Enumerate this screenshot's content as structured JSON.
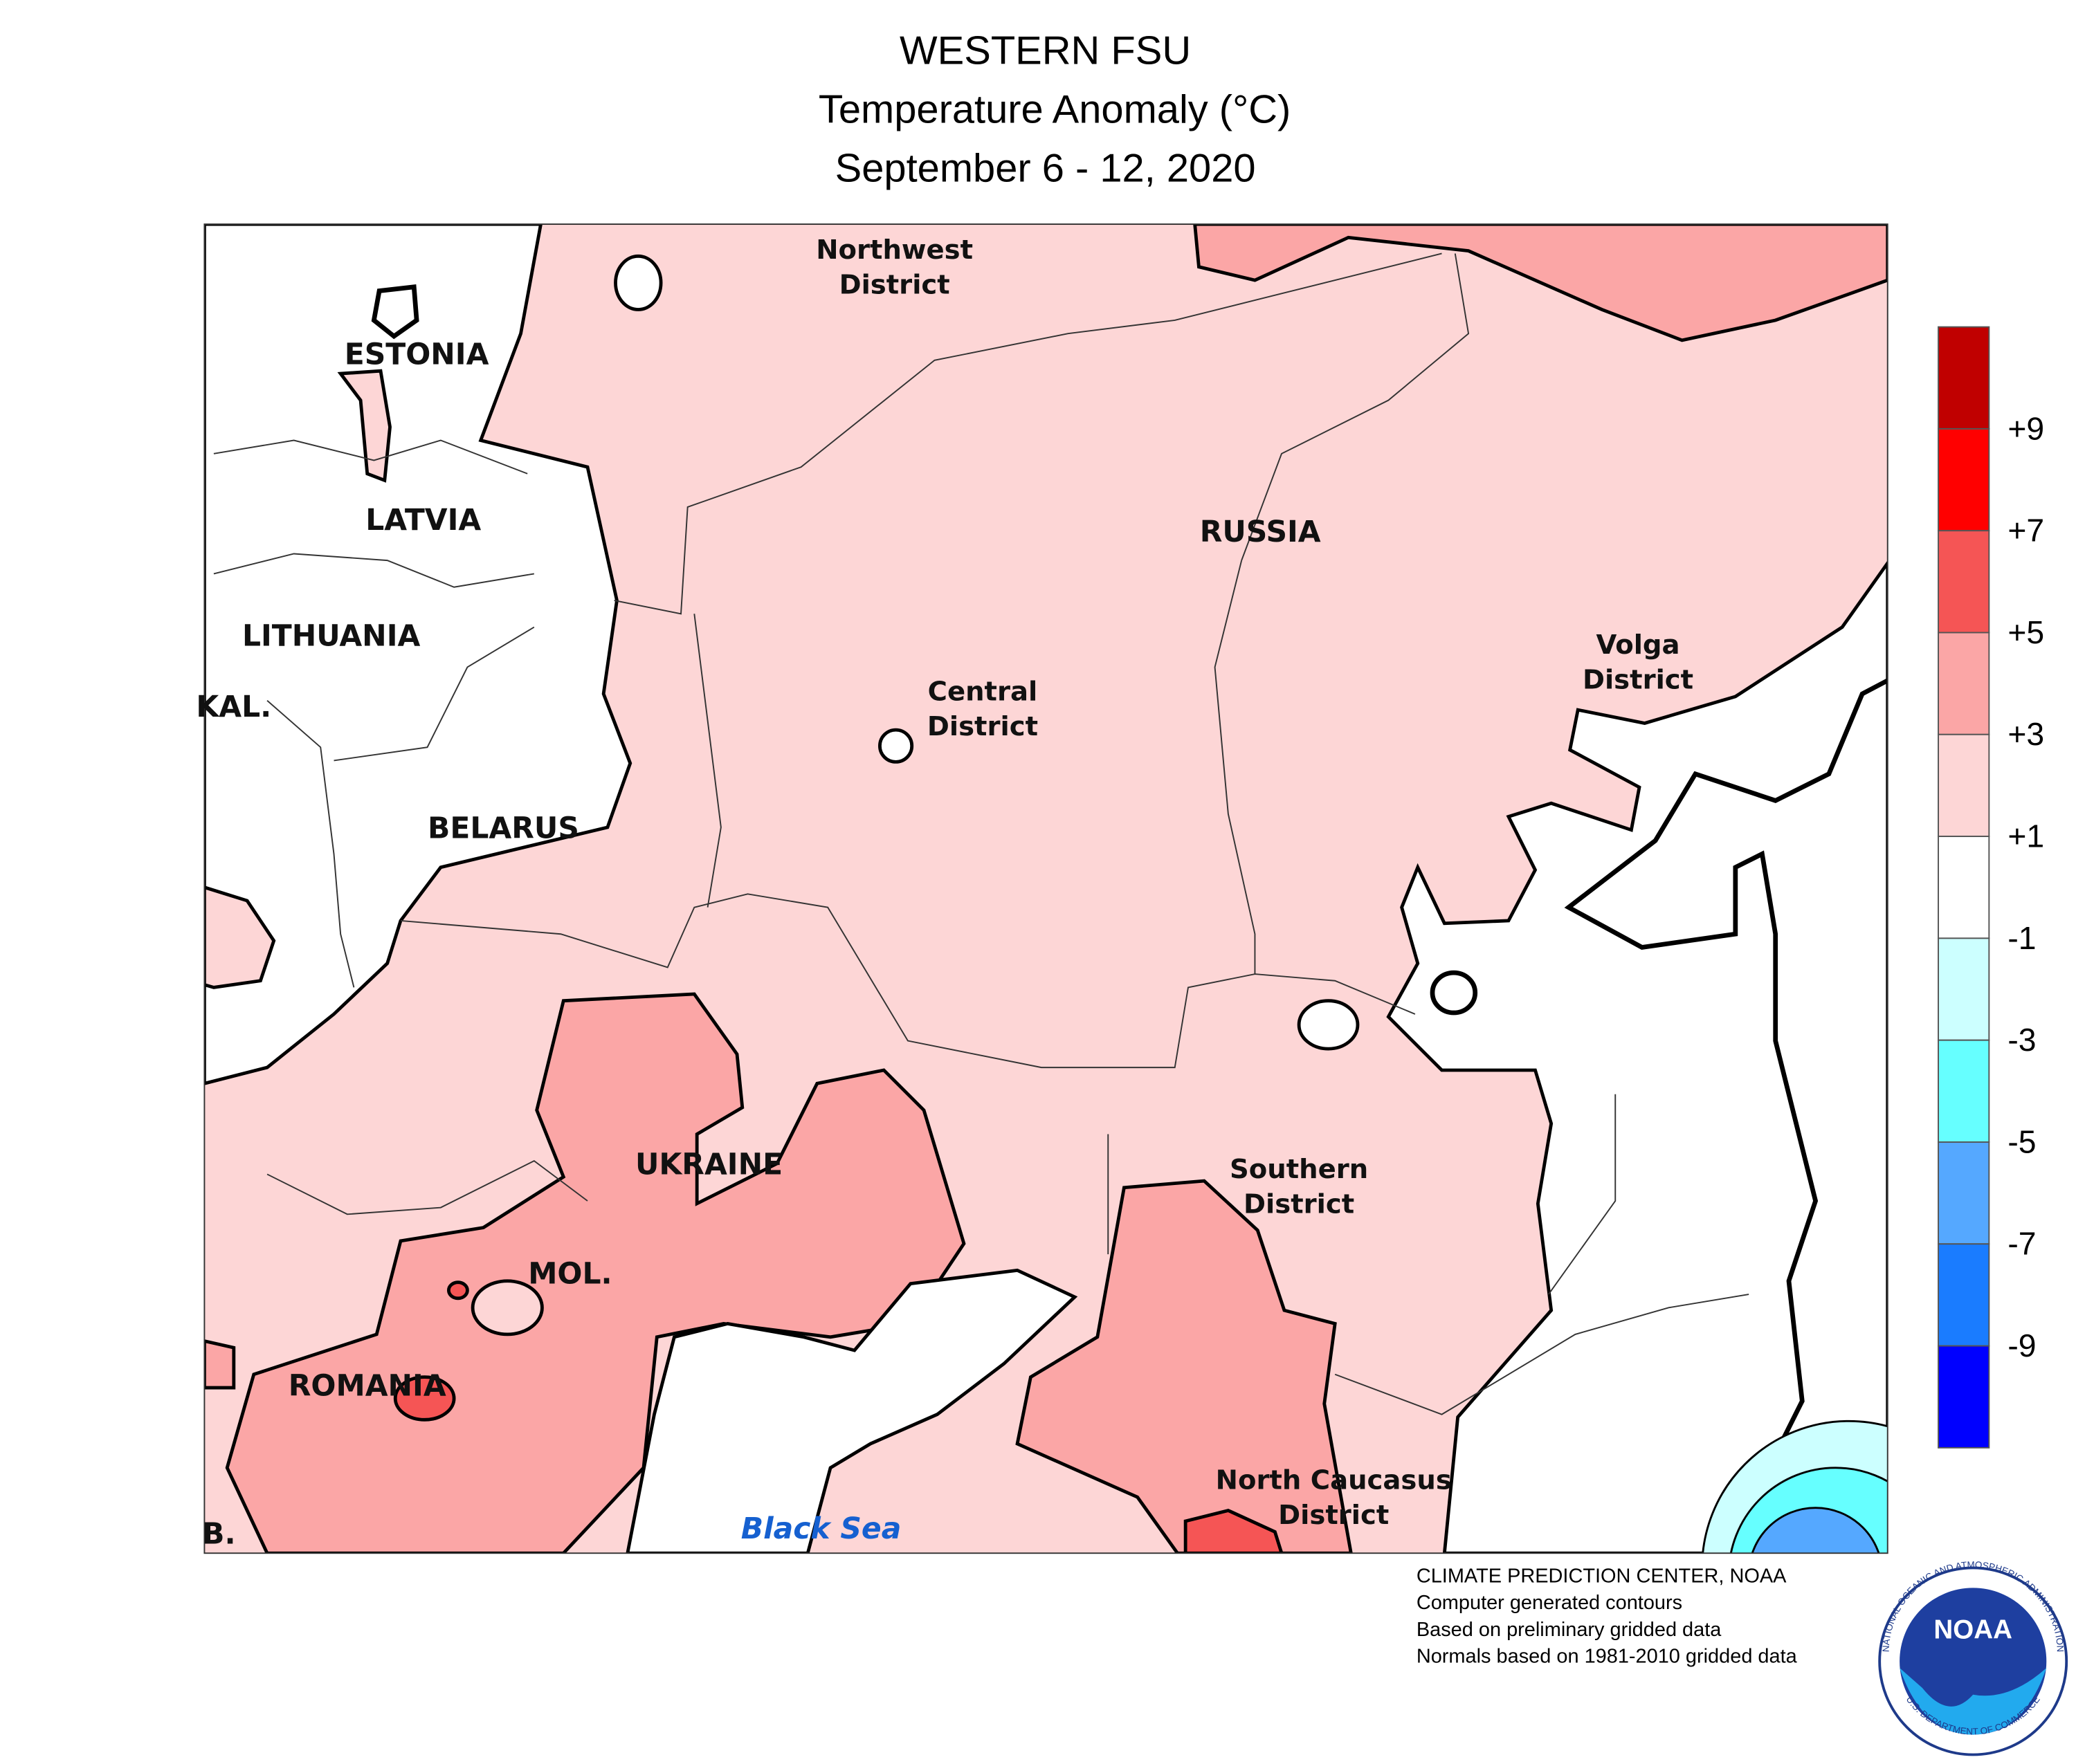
{
  "header": {
    "title": "WESTERN FSU",
    "subtitle": "Temperature Anomaly (°C)",
    "period": "September 6 - 12, 2020"
  },
  "map_labels": [
    "Northwest",
    "District",
    "ESTONIA",
    "LATVIA",
    "LITHUANIA",
    "KAL.",
    "BELARUS",
    "RUSSIA",
    "Central",
    "District",
    "Volga",
    "District",
    "UKRAINE",
    "MOL.",
    "ROMANIA",
    "Southern",
    "District",
    "North Caucasus",
    "District",
    "SERB.",
    "Black Sea"
  ],
  "legend": {
    "colors": [
      "#c00000",
      "#ff0000",
      "#f55555",
      "#fba6a6",
      "#fdd6d6",
      "#ffffff",
      "#ccffff",
      "#66ffff",
      "#55a8ff",
      "#1a7cff",
      "#0000ff"
    ],
    "ticks": [
      "+9",
      "+7",
      "+5",
      "+3",
      "+1",
      "-1",
      "-3",
      "-5",
      "-7",
      "-9"
    ]
  },
  "footer": {
    "lines": [
      "CLIMATE PREDICTION CENTER, NOAA",
      "Computer generated contours",
      "Based on preliminary gridded data",
      "Normals based on 1981-2010 gridded data"
    ]
  },
  "logo": {
    "text": "NOAA",
    "ring_top": "NATIONAL OCEANIC AND ATMOSPHERIC ADMINISTRATION",
    "ring_bottom": "U.S. DEPARTMENT OF COMMERCE"
  }
}
